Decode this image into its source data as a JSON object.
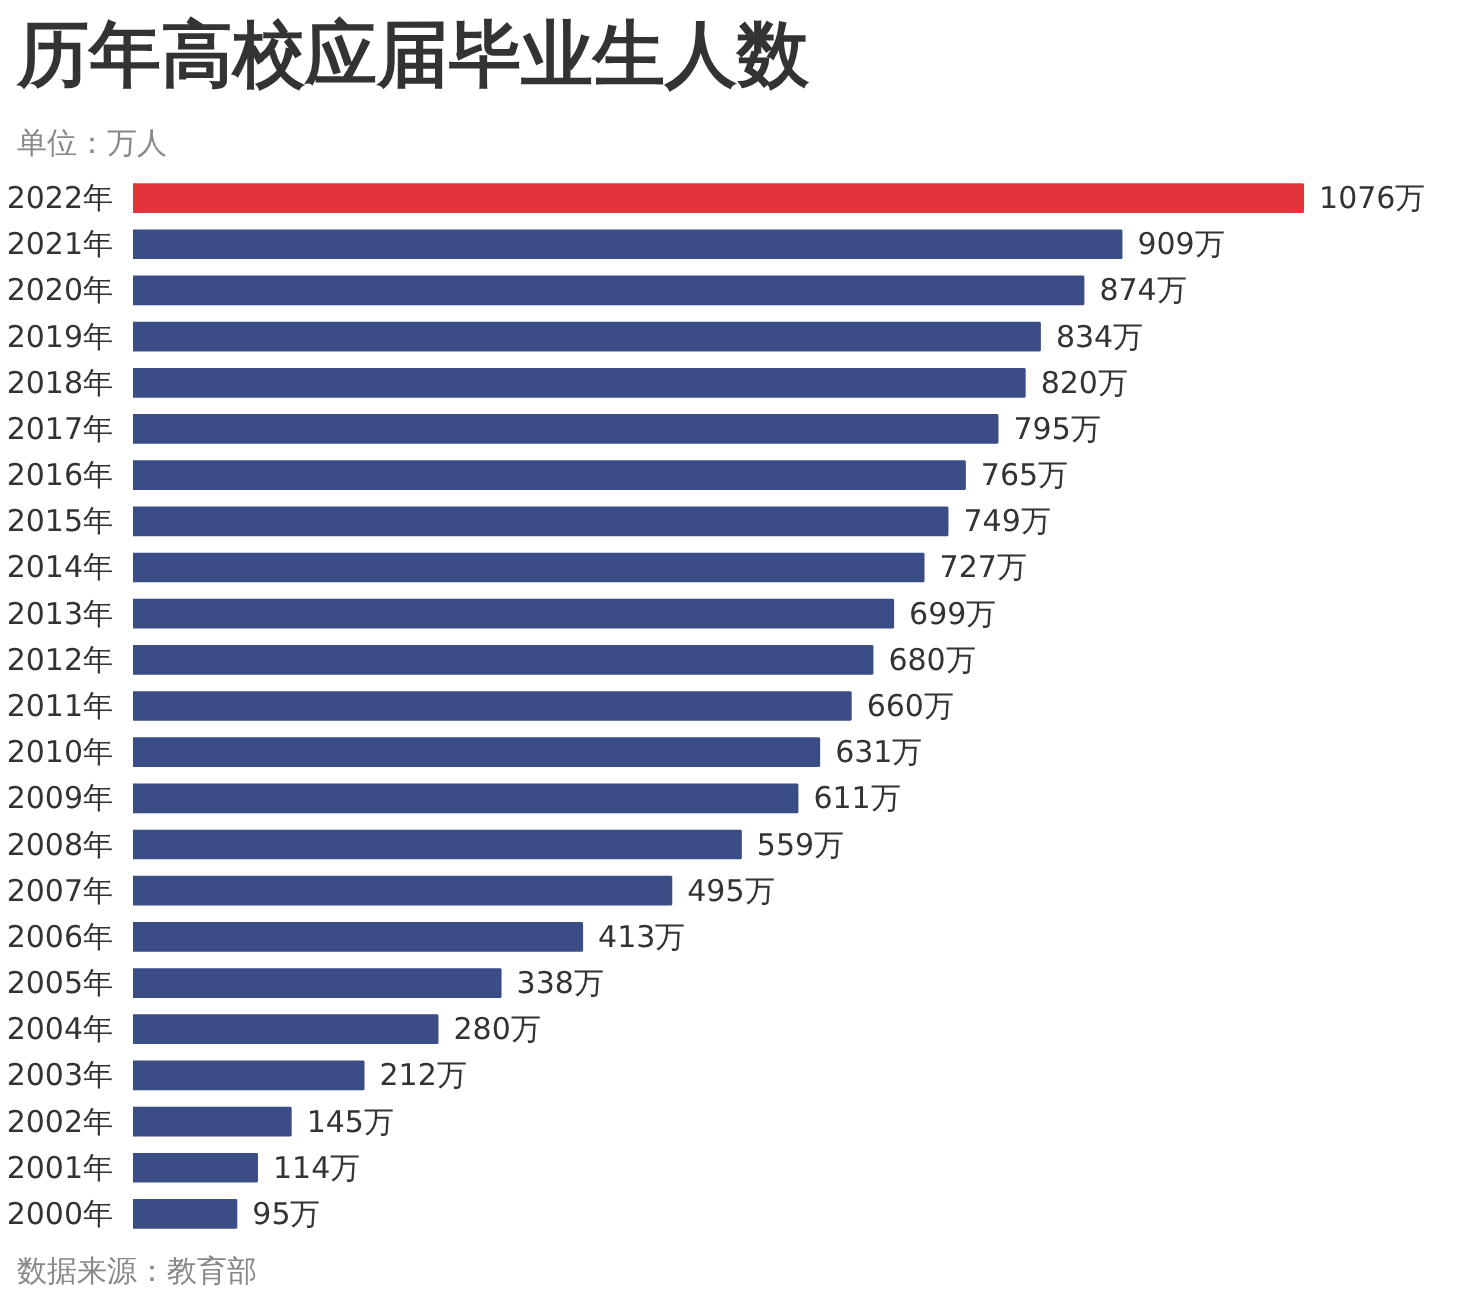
{
  "chart_data": {
    "type": "bar",
    "orientation": "horizontal",
    "title": "历年高校应届毕业生人数",
    "subtitle": "单位：万人",
    "annotations": [
      "数据来源：教育部"
    ],
    "categories": [
      "2022年",
      "2021年",
      "2020年",
      "2019年",
      "2018年",
      "2017年",
      "2016年",
      "2015年",
      "2014年",
      "2013年",
      "2012年",
      "2011年",
      "2010年",
      "2009年",
      "2008年",
      "2007年",
      "2006年",
      "2005年",
      "2004年",
      "2003年",
      "2002年",
      "2001年",
      "2000年"
    ],
    "values": [
      1076,
      909,
      874,
      834,
      820,
      795,
      765,
      749,
      727,
      699,
      680,
      660,
      631,
      611,
      559,
      495,
      413,
      338,
      280,
      212,
      145,
      114,
      95
    ],
    "value_labels": [
      "1076万",
      "909万",
      "874万",
      "834万",
      "820万",
      "795万",
      "765万",
      "749万",
      "727万",
      "699万",
      "680万",
      "660万",
      "631万",
      "611万",
      "559万",
      "495万",
      "413万",
      "338万",
      "280万",
      "212万",
      "145万",
      "114万",
      "95万"
    ],
    "colors": [
      "#e4343b",
      "#3b4d86",
      "#3b4d86",
      "#3b4d86",
      "#3b4d86",
      "#3b4d86",
      "#3b4d86",
      "#3b4d86",
      "#3b4d86",
      "#3b4d86",
      "#3b4d86",
      "#3b4d86",
      "#3b4d86",
      "#3b4d86",
      "#3b4d86",
      "#3b4d86",
      "#3b4d86",
      "#3b4d86",
      "#3b4d86",
      "#3b4d86",
      "#3b4d86",
      "#3b4d86",
      "#3b4d86"
    ],
    "tick_labels": "y"
  }
}
